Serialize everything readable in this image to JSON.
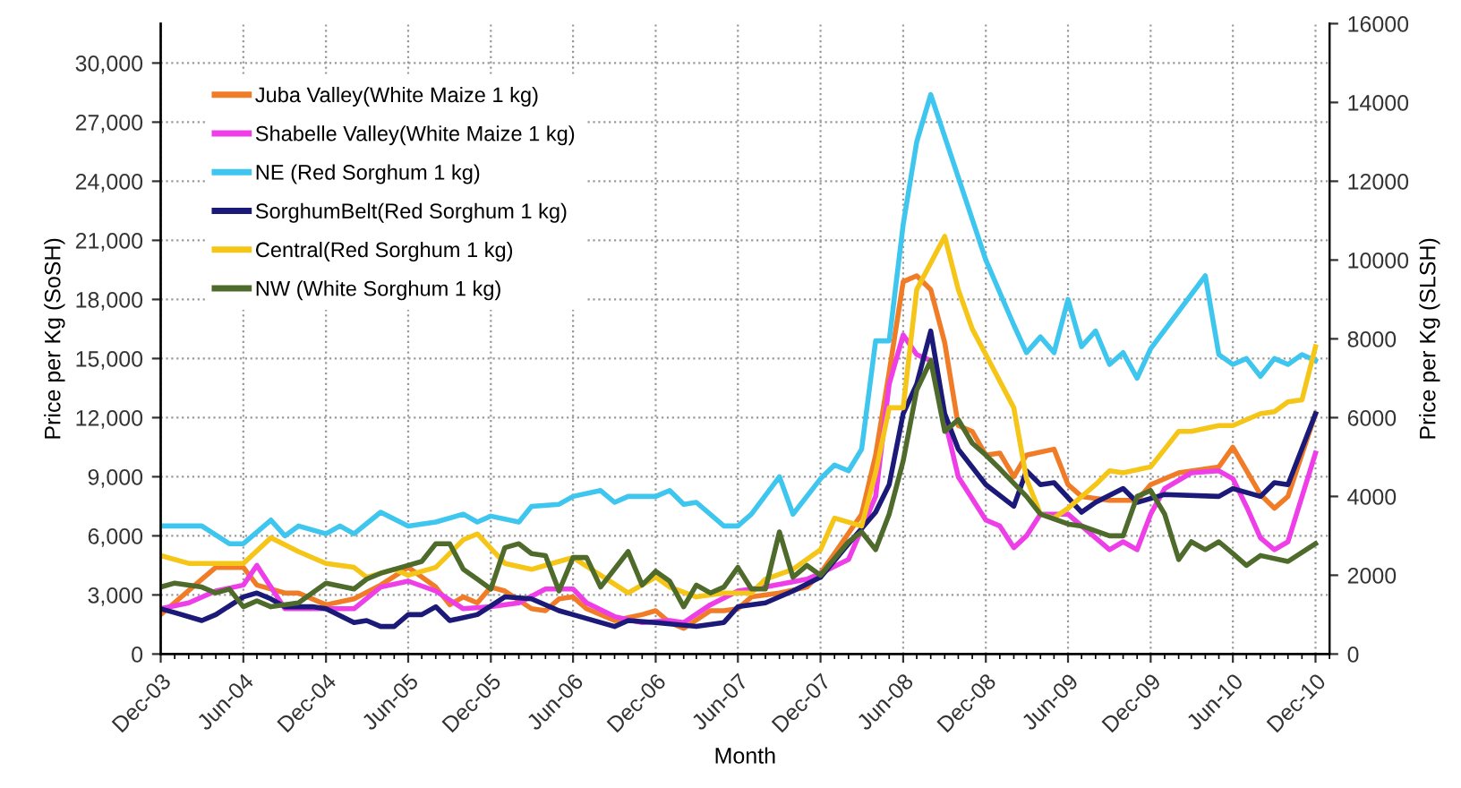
{
  "chart_data": {
    "type": "line",
    "xlabel": "Month",
    "ylabel": "Price per Kg (SoSH)",
    "y2label": "Price per Kg (SLSH)",
    "xlim": [
      "2003-12",
      "2011-01"
    ],
    "xticks": [
      {
        "value": "2003-12",
        "label": "Dec-03"
      },
      {
        "value": "2004-06",
        "label": "Jun-04"
      },
      {
        "value": "2004-12",
        "label": "Dec-04"
      },
      {
        "value": "2005-06",
        "label": "Jun-05"
      },
      {
        "value": "2005-12",
        "label": "Dec-05"
      },
      {
        "value": "2006-06",
        "label": "Jun-06"
      },
      {
        "value": "2006-12",
        "label": "Dec-06"
      },
      {
        "value": "2007-06",
        "label": "Jun-07"
      },
      {
        "value": "2007-12",
        "label": "Dec-07"
      },
      {
        "value": "2008-06",
        "label": "Jun-08"
      },
      {
        "value": "2008-12",
        "label": "Dec-08"
      },
      {
        "value": "2009-06",
        "label": "Jun-09"
      },
      {
        "value": "2009-12",
        "label": "Dec-09"
      },
      {
        "value": "2010-06",
        "label": "Jun-10"
      },
      {
        "value": "2010-12",
        "label": "Dec-10"
      }
    ],
    "ylim": [
      0,
      32000
    ],
    "yticks": [
      0,
      {
        "value": 3000,
        "label": "3,000"
      },
      {
        "value": 6000,
        "label": "6,000"
      },
      {
        "value": 9000,
        "label": "9,000"
      },
      {
        "value": 12000,
        "label": "12,000"
      },
      {
        "value": 15000,
        "label": "15,000"
      },
      {
        "value": 18000,
        "label": "18,000"
      },
      {
        "value": 21000,
        "label": "21,000"
      },
      {
        "value": 24000,
        "label": "24,000"
      },
      {
        "value": 27000,
        "label": "27,000"
      },
      {
        "value": 30000,
        "label": "30,000"
      }
    ],
    "y2lim": [
      0,
      16000
    ],
    "y2ticks": [
      0,
      2000,
      4000,
      6000,
      8000,
      10000,
      12000,
      14000,
      16000
    ],
    "grid": true,
    "legend": "top left",
    "marker": "none",
    "line_style": "solid",
    "series": [
      {
        "name": "Juba Valley(White Maize 1 kg)",
        "color": "#f07c28",
        "x": [
          "2003-12",
          "2004-03",
          "2004-04",
          "2004-06",
          "2004-07",
          "2004-09",
          "2004-10",
          "2004-12",
          "2005-02",
          "2005-04",
          "2005-06",
          "2005-08",
          "2005-09",
          "2005-10",
          "2005-11",
          "2005-12",
          "2006-01",
          "2006-03",
          "2006-04",
          "2006-05",
          "2006-06",
          "2006-07",
          "2006-09",
          "2006-11",
          "2006-12",
          "2007-01",
          "2007-02",
          "2007-04",
          "2007-05",
          "2007-06",
          "2007-07",
          "2007-09",
          "2007-11",
          "2007-12",
          "2008-01",
          "2008-03",
          "2008-04",
          "2008-05",
          "2008-06",
          "2008-07",
          "2008-08",
          "2008-09",
          "2008-10",
          "2008-11",
          "2008-12",
          "2009-01",
          "2009-02",
          "2009-03",
          "2009-05",
          "2009-06",
          "2009-07",
          "2009-09",
          "2009-11",
          "2009-12",
          "2010-02",
          "2010-05",
          "2010-06",
          "2010-08",
          "2010-09",
          "2010-10",
          "2010-12"
        ],
        "values": [
          2000,
          3800,
          4400,
          4400,
          3500,
          3100,
          3100,
          2500,
          2800,
          3500,
          4400,
          3400,
          2500,
          2900,
          2600,
          3400,
          3200,
          2300,
          2200,
          2800,
          2900,
          2300,
          1700,
          2000,
          2200,
          1600,
          1300,
          2200,
          2200,
          2300,
          2900,
          3100,
          3400,
          4100,
          5100,
          7100,
          10100,
          14300,
          18900,
          19200,
          18500,
          15800,
          11600,
          11300,
          10100,
          10200,
          9000,
          10100,
          10400,
          8600,
          8000,
          7800,
          7800,
          8600,
          9200,
          9500,
          10500,
          8100,
          7400,
          8000,
          12200
        ]
      },
      {
        "name": "Shabelle Valley(White Maize 1 kg)",
        "color": "#ee3ee8",
        "x": [
          "2003-12",
          "2004-02",
          "2004-04",
          "2004-06",
          "2004-07",
          "2004-09",
          "2004-10",
          "2004-12",
          "2005-02",
          "2005-04",
          "2005-06",
          "2005-08",
          "2005-10",
          "2005-12",
          "2006-02",
          "2006-04",
          "2006-06",
          "2006-07",
          "2006-09",
          "2006-11",
          "2007-01",
          "2007-02",
          "2007-04",
          "2007-06",
          "2007-08",
          "2007-11",
          "2007-12",
          "2008-02",
          "2008-04",
          "2008-05",
          "2008-06",
          "2008-07",
          "2008-08",
          "2008-09",
          "2008-10",
          "2008-12",
          "2009-01",
          "2009-02",
          "2009-03",
          "2009-04",
          "2009-06",
          "2009-07",
          "2009-09",
          "2009-10",
          "2009-11",
          "2009-12",
          "2010-01",
          "2010-03",
          "2010-05",
          "2010-06",
          "2010-07",
          "2010-08",
          "2010-09",
          "2010-10",
          "2010-12"
        ],
        "values": [
          2300,
          2600,
          3200,
          3500,
          4500,
          2300,
          2300,
          2300,
          2300,
          3400,
          3700,
          3200,
          2300,
          2400,
          2600,
          3300,
          3300,
          2600,
          1900,
          1600,
          1700,
          1600,
          2500,
          3200,
          3400,
          3800,
          4100,
          4800,
          8000,
          13700,
          16200,
          15200,
          14900,
          11900,
          9000,
          6800,
          6500,
          5400,
          6000,
          7100,
          7100,
          6500,
          5300,
          5700,
          5300,
          7100,
          8400,
          9200,
          9300,
          8900,
          7500,
          5900,
          5300,
          5700,
          10200
        ]
      },
      {
        "name": "NE (Red Sorghum 1 kg)",
        "color": "#3ec6ef",
        "x": [
          "2003-12",
          "2004-03",
          "2004-05",
          "2004-06",
          "2004-08",
          "2004-09",
          "2004-10",
          "2004-12",
          "2005-01",
          "2005-02",
          "2005-04",
          "2005-06",
          "2005-08",
          "2005-10",
          "2005-11",
          "2005-12",
          "2006-02",
          "2006-03",
          "2006-05",
          "2006-06",
          "2006-08",
          "2006-09",
          "2006-10",
          "2006-12",
          "2007-01",
          "2007-02",
          "2007-03",
          "2007-05",
          "2007-06",
          "2007-07",
          "2007-09",
          "2007-10",
          "2007-12",
          "2008-01",
          "2008-02",
          "2008-03",
          "2008-04",
          "2008-05",
          "2008-06",
          "2008-07",
          "2008-08",
          "2008-12",
          "2009-02",
          "2009-03",
          "2009-04",
          "2009-05",
          "2009-06",
          "2009-07",
          "2009-08",
          "2009-09",
          "2009-10",
          "2009-11",
          "2009-12",
          "2010-04",
          "2010-05",
          "2010-06",
          "2010-07",
          "2010-08",
          "2010-09",
          "2010-10",
          "2010-11",
          "2010-12"
        ],
        "values": [
          6500,
          6500,
          5600,
          5600,
          6800,
          6000,
          6500,
          6100,
          6500,
          6100,
          7200,
          6500,
          6700,
          7100,
          6700,
          7000,
          6700,
          7500,
          7600,
          8000,
          8300,
          7700,
          8000,
          8000,
          8300,
          7600,
          7700,
          6500,
          6500,
          7100,
          9000,
          7100,
          8900,
          9600,
          9300,
          10400,
          15900,
          15900,
          21800,
          26000,
          28400,
          20000,
          16700,
          15300,
          16100,
          15300,
          18000,
          15600,
          16400,
          14700,
          15300,
          14000,
          15500,
          19200,
          15200,
          14700,
          15000,
          14100,
          15000,
          14700,
          15200,
          14900
        ]
      },
      {
        "name": "SorghumBelt(Red Sorghum 1 kg)",
        "color": "#1c1a78",
        "x": [
          "2003-12",
          "2004-01",
          "2004-03",
          "2004-04",
          "2004-06",
          "2004-07",
          "2004-08",
          "2004-09",
          "2004-11",
          "2004-12",
          "2005-02",
          "2005-03",
          "2005-04",
          "2005-05",
          "2005-06",
          "2005-07",
          "2005-08",
          "2005-09",
          "2005-11",
          "2006-01",
          "2006-03",
          "2006-05",
          "2006-06",
          "2006-09",
          "2006-10",
          "2006-12",
          "2007-03",
          "2007-05",
          "2007-06",
          "2007-08",
          "2007-10",
          "2007-12",
          "2008-02",
          "2008-04",
          "2008-05",
          "2008-06",
          "2008-07",
          "2008-08",
          "2008-09",
          "2008-10",
          "2008-12",
          "2009-02",
          "2009-03",
          "2009-04",
          "2009-05",
          "2009-07",
          "2009-08",
          "2009-10",
          "2009-11",
          "2010-01",
          "2010-05",
          "2010-06",
          "2010-08",
          "2010-09",
          "2010-10",
          "2010-12"
        ],
        "values": [
          2300,
          2100,
          1700,
          2000,
          2900,
          3100,
          2800,
          2400,
          2400,
          2300,
          1600,
          1700,
          1400,
          1400,
          2000,
          2000,
          2400,
          1700,
          2000,
          2900,
          2800,
          2200,
          2000,
          1400,
          1700,
          1600,
          1400,
          1600,
          2400,
          2600,
          3200,
          3900,
          5600,
          7200,
          8600,
          12200,
          13700,
          16400,
          12200,
          10400,
          8600,
          7500,
          9300,
          8600,
          8700,
          7200,
          7700,
          8400,
          7700,
          8100,
          8000,
          8400,
          8000,
          8700,
          8600,
          12200
        ]
      },
      {
        "name": "Central(Red Sorghum 1 kg)",
        "color": "#f5c518",
        "x": [
          "2003-12",
          "2004-02",
          "2004-06",
          "2004-08",
          "2004-10",
          "2004-12",
          "2005-02",
          "2005-03",
          "2005-05",
          "2005-06",
          "2005-08",
          "2005-10",
          "2005-11",
          "2006-01",
          "2006-03",
          "2006-05",
          "2006-06",
          "2006-08",
          "2006-10",
          "2006-12",
          "2007-01",
          "2007-03",
          "2007-05",
          "2007-07",
          "2007-08",
          "2007-10",
          "2007-12",
          "2008-01",
          "2008-03",
          "2008-04",
          "2008-05",
          "2008-06",
          "2008-07",
          "2008-09",
          "2008-10",
          "2008-11",
          "2008-12",
          "2009-02",
          "2009-03",
          "2009-04",
          "2009-05",
          "2009-06",
          "2009-08",
          "2009-09",
          "2009-10",
          "2009-12",
          "2010-01",
          "2010-02",
          "2010-03",
          "2010-05",
          "2010-06",
          "2010-08",
          "2010-09",
          "2010-10",
          "2010-11",
          "2010-12"
        ],
        "values": [
          5000,
          4600,
          4600,
          5900,
          5200,
          4600,
          4400,
          3900,
          4300,
          4000,
          4400,
          5800,
          6100,
          4600,
          4300,
          4700,
          4900,
          4000,
          3100,
          3900,
          3400,
          2900,
          3100,
          3100,
          3800,
          4300,
          5300,
          6900,
          6500,
          9200,
          12500,
          12500,
          18500,
          21200,
          18500,
          16500,
          15200,
          12500,
          8900,
          7100,
          6900,
          7400,
          8600,
          9300,
          9200,
          9500,
          10400,
          11300,
          11300,
          11600,
          11600,
          12200,
          12300,
          12800,
          12900,
          15600
        ]
      },
      {
        "name": "NW (White Sorghum 1 kg)",
        "color": "#4e6b2c",
        "axis": "y2",
        "x": [
          "2003-12",
          "2004-01",
          "2004-03",
          "2004-04",
          "2004-05",
          "2004-06",
          "2004-07",
          "2004-08",
          "2004-10",
          "2004-12",
          "2005-02",
          "2005-03",
          "2005-04",
          "2005-06",
          "2005-07",
          "2005-08",
          "2005-09",
          "2005-10",
          "2005-11",
          "2005-12",
          "2006-01",
          "2006-02",
          "2006-03",
          "2006-04",
          "2006-05",
          "2006-06",
          "2006-07",
          "2006-08",
          "2006-10",
          "2006-11",
          "2006-12",
          "2007-01",
          "2007-02",
          "2007-03",
          "2007-04",
          "2007-05",
          "2007-06",
          "2007-07",
          "2007-08",
          "2007-09",
          "2007-10",
          "2007-11",
          "2007-12",
          "2008-02",
          "2008-03",
          "2008-04",
          "2008-05",
          "2008-06",
          "2008-07",
          "2008-08",
          "2008-09",
          "2008-10",
          "2008-11",
          "2008-12",
          "2009-01",
          "2009-03",
          "2009-04",
          "2009-06",
          "2009-07",
          "2009-09",
          "2009-10",
          "2009-11",
          "2009-12",
          "2010-01",
          "2010-02",
          "2010-03",
          "2010-04",
          "2010-05",
          "2010-06",
          "2010-07",
          "2010-08",
          "2010-10",
          "2010-12"
        ],
        "values": [
          1700,
          1800,
          1700,
          1550,
          1650,
          1200,
          1350,
          1200,
          1300,
          1800,
          1650,
          1900,
          2050,
          2250,
          2350,
          2800,
          2800,
          2150,
          1900,
          1650,
          2700,
          2800,
          2550,
          2500,
          1600,
          2450,
          2450,
          1700,
          2600,
          1750,
          2100,
          1850,
          1200,
          1750,
          1550,
          1700,
          2200,
          1650,
          1650,
          3100,
          1950,
          2250,
          2000,
          2850,
          3100,
          2650,
          3550,
          4900,
          6700,
          7450,
          5650,
          5950,
          5350,
          5050,
          4700,
          4000,
          3550,
          3300,
          3250,
          3000,
          3000,
          4000,
          4150,
          3550,
          2400,
          2850,
          2650,
          2850,
          2550,
          2250,
          2500,
          2350,
          2800
        ]
      }
    ]
  }
}
